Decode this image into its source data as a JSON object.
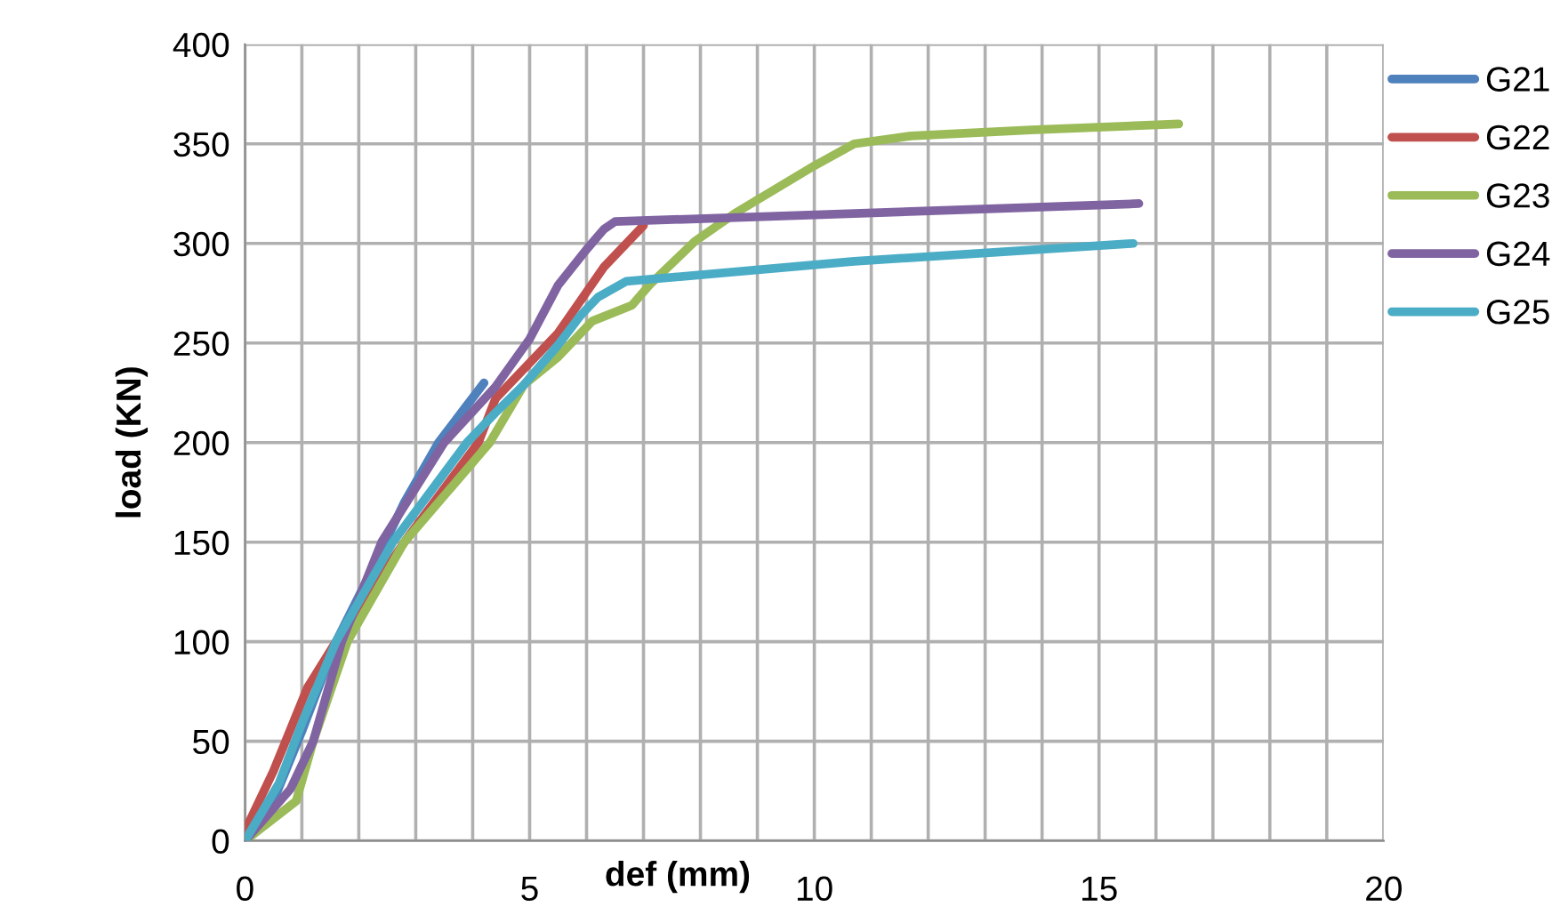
{
  "chart_data": {
    "type": "line",
    "xlabel": "def (mm)",
    "ylabel": "load (KN)",
    "xlim": [
      0,
      20
    ],
    "ylim": [
      0,
      400
    ],
    "xticks": [
      0,
      {
        "value": 1,
        "label": null
      },
      {
        "value": 2,
        "label": null
      },
      {
        "value": 3,
        "label": null
      },
      {
        "value": 4,
        "label": null
      },
      5,
      {
        "value": 6,
        "label": null
      },
      {
        "value": 7,
        "label": null
      },
      {
        "value": 8,
        "label": null
      },
      {
        "value": 9,
        "label": null
      },
      10,
      {
        "value": 11,
        "label": null
      },
      {
        "value": 12,
        "label": null
      },
      {
        "value": 13,
        "label": null
      },
      {
        "value": 14,
        "label": null
      },
      15,
      {
        "value": 16,
        "label": null
      },
      {
        "value": 17,
        "label": null
      },
      {
        "value": 18,
        "label": null
      },
      {
        "value": 19,
        "label": null
      },
      20
    ],
    "yticks": [
      0,
      50,
      100,
      150,
      200,
      250,
      300,
      350,
      400
    ],
    "grid": true,
    "legend": "right",
    "marker": "none",
    "line_style": "solid",
    "series": [
      {
        "name": "G21",
        "color": "#4f81bd",
        "x": [
          0,
          0.5,
          1,
          1.6,
          2.3,
          2.8,
          3.4,
          4.2
        ],
        "values": [
          0,
          20,
          55,
          100,
          140,
          170,
          200,
          230
        ]
      },
      {
        "name": "G22",
        "color": "#c0504d",
        "x": [
          0,
          0.5,
          1.1,
          1.6,
          2.8,
          4.1,
          4.4,
          5.5,
          6.3,
          7.0
        ],
        "values": [
          5,
          35,
          77,
          100,
          150,
          200,
          222,
          255,
          288,
          309
        ]
      },
      {
        "name": "G23",
        "color": "#9bbb59",
        "x": [
          0,
          0.9,
          1.2,
          1.8,
          2.8,
          4.3,
          4.9,
          5.5,
          6.1,
          6.8,
          7.1,
          7.9,
          8.6,
          10.0,
          10.7,
          11.7,
          13.8,
          16.4
        ],
        "values": [
          0,
          20,
          50,
          100,
          150,
          200,
          229,
          243,
          261,
          269,
          279,
          301,
          315,
          339,
          350,
          354,
          357,
          360
        ]
      },
      {
        "name": "G24",
        "color": "#8064a2",
        "x": [
          0,
          0.8,
          1.2,
          1.7,
          2.4,
          3.5,
          4.4,
          5.0,
          5.5,
          6.0,
          6.3,
          6.5,
          10.7,
          15.7
        ],
        "values": [
          0,
          26,
          50,
          100,
          150,
          200,
          228,
          252,
          279,
          297,
          307,
          311,
          315,
          320
        ]
      },
      {
        "name": "G25",
        "color": "#4bacc6",
        "x": [
          0,
          0.6,
          1.0,
          1.6,
          2.6,
          3.9,
          4.4,
          4.9,
          5.5,
          5.9,
          6.2,
          6.7,
          10.7,
          15.6
        ],
        "values": [
          0,
          29,
          59,
          100,
          150,
          200,
          215,
          229,
          249,
          264,
          273,
          281,
          291,
          300
        ]
      }
    ]
  }
}
